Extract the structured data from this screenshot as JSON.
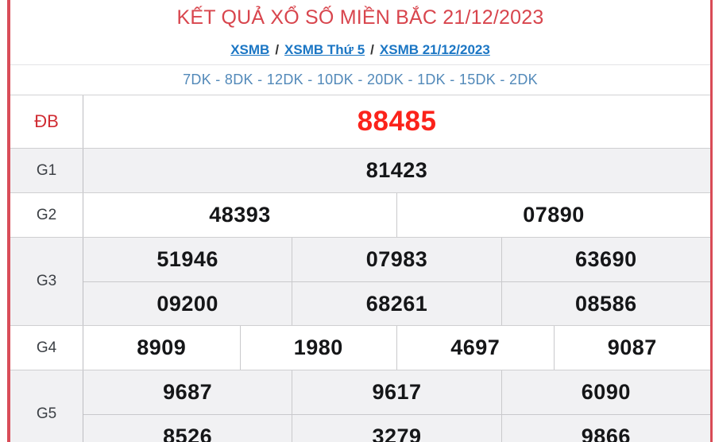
{
  "page": {
    "title": "KẾT QUẢ XỔ SỐ MIỀN BẮC 21/12/2023",
    "breadcrumb": {
      "separator": "/",
      "items": [
        {
          "label": "XSMB"
        },
        {
          "label": "XSMB Thứ 5"
        },
        {
          "label": "XSMB 21/12/2023"
        }
      ]
    },
    "loto_line": "7DK - 8DK - 12DK - 10DK - 20DK - 1DK - 15DK - 2DK"
  },
  "results_table": {
    "rows": [
      {
        "key": "db",
        "label": "ĐB",
        "highlight": true,
        "groups": [
          [
            "88485"
          ]
        ]
      },
      {
        "key": "g1",
        "label": "G1",
        "highlight": false,
        "groups": [
          [
            "81423"
          ]
        ]
      },
      {
        "key": "g2",
        "label": "G2",
        "highlight": false,
        "groups": [
          [
            "48393",
            "07890"
          ]
        ]
      },
      {
        "key": "g3",
        "label": "G3",
        "highlight": false,
        "groups": [
          [
            "51946",
            "07983",
            "63690"
          ],
          [
            "09200",
            "68261",
            "08586"
          ]
        ]
      },
      {
        "key": "g4",
        "label": "G4",
        "highlight": false,
        "groups": [
          [
            "8909",
            "1980",
            "4697",
            "9087"
          ]
        ]
      },
      {
        "key": "g5",
        "label": "G5",
        "highlight": false,
        "groups": [
          [
            "9687",
            "9617",
            "6090"
          ],
          [
            "8526",
            "3279",
            "9866"
          ]
        ]
      }
    ]
  },
  "colors": {
    "page_border_red": "#d94b56",
    "title_red": "#d8454d",
    "special_prize_red": "#fb231b",
    "special_label_red": "#d02c33",
    "link_blue": "#1b76c4",
    "loto_blue": "#5289b9",
    "row_shade_gray": "#f1f1f3",
    "grid_line_gray": "#c9c9cc",
    "number_black": "#151618"
  }
}
